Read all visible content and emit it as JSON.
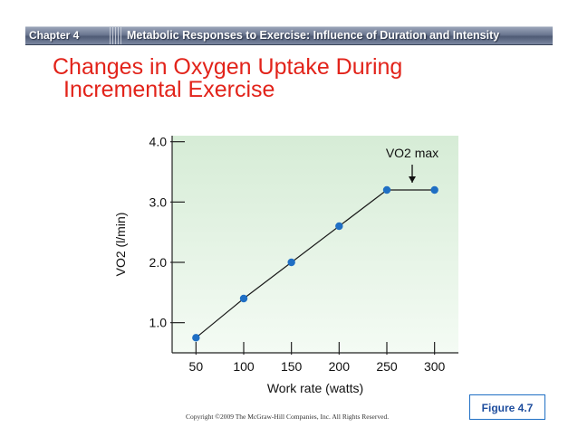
{
  "header": {
    "chapter": "Chapter 4",
    "title": "Metabolic Responses to Exercise: Influence of Duration and Intensity"
  },
  "slide": {
    "title_line1": "Changes in Oxygen Uptake During",
    "title_line2": "Incremental Exercise"
  },
  "chart_data": {
    "type": "line",
    "xlabel": "Work rate (watts)",
    "ylabel": "VO2 (l/min)",
    "x_ticks": [
      "50",
      "100",
      "150",
      "200",
      "250",
      "300"
    ],
    "y_ticks": [
      "1.0",
      "2.0",
      "3.0",
      "4.0"
    ],
    "xlim": [
      25,
      325
    ],
    "ylim": [
      0.5,
      4.1
    ],
    "series": [
      {
        "x": [
          50,
          100,
          150,
          200,
          250,
          300
        ],
        "y": [
          0.75,
          1.4,
          2.0,
          2.6,
          3.2,
          3.2
        ]
      }
    ],
    "annotation": {
      "text": "VO2 max",
      "x": 250,
      "y": 3.2
    },
    "colors": {
      "point": "#1f6fc4",
      "line": "#1a1a1a",
      "bg_top": "#d6ecd6",
      "bg_bottom": "#f4fbf4"
    },
    "grid": false
  },
  "footer": {
    "copyright": "Copyright ©2009 The McGraw-Hill Companies, Inc. All Rights Reserved.",
    "figure_label": "Figure 4.7"
  }
}
